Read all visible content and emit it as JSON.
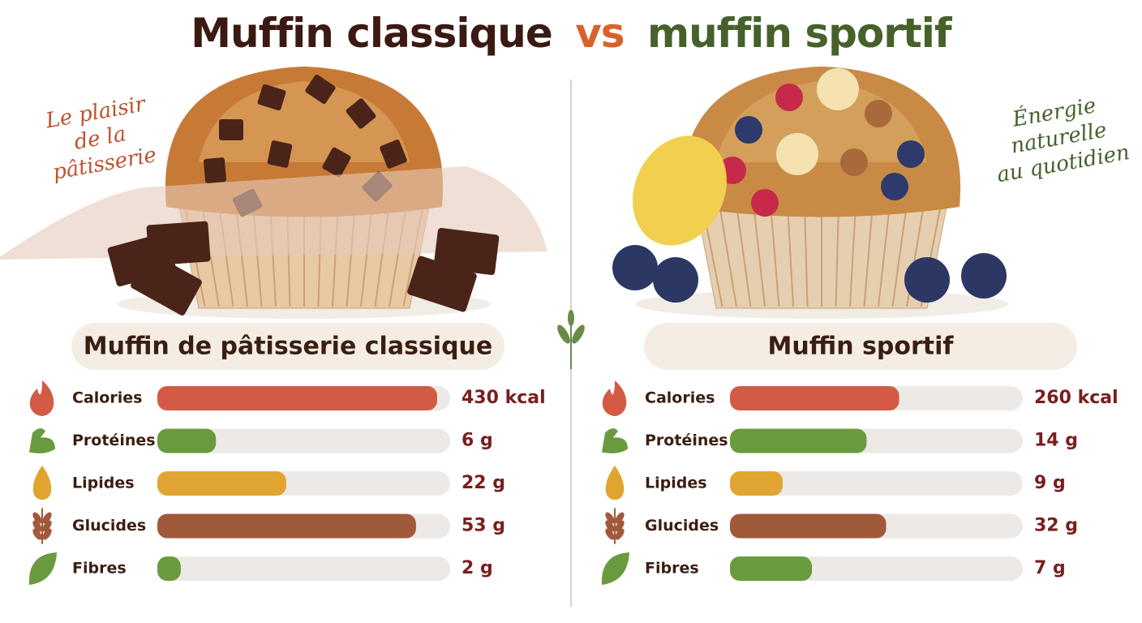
{
  "title": {
    "left": "Muffin classique",
    "vs": "vs",
    "right": "muffin sportif"
  },
  "nutrients": [
    {
      "name": "Calories",
      "color": "#d35a45",
      "xlim": [
        0,
        450
      ]
    },
    {
      "name": "Protéines",
      "color": "#6a9a3e",
      "xlim": [
        0,
        30
      ]
    },
    {
      "name": "Lipides",
      "color": "#e0a431",
      "xlim": [
        0,
        50
      ]
    },
    {
      "name": "Glucides",
      "color": "#a0593a",
      "xlim": [
        0,
        60
      ]
    },
    {
      "name": "Fibres",
      "color": "#6a9a3e",
      "xlim": [
        0,
        25
      ]
    }
  ],
  "panels": [
    {
      "name": "Muffin de pâtisserie classique",
      "tagline": [
        "Le plaisir",
        "de la",
        "pâtisserie"
      ],
      "values": [
        430,
        6,
        22,
        53,
        2
      ],
      "value_labels": [
        "430 kcal",
        "6 g",
        "22 g",
        "53 g",
        "2 g"
      ]
    },
    {
      "name": "Muffin sportif",
      "tagline": [
        "Énergie",
        "naturelle",
        "au quotidien"
      ],
      "values": [
        260,
        14,
        9,
        32,
        7
      ],
      "value_labels": [
        "260 kcal",
        "14 g",
        "9 g",
        "32 g",
        "7 g"
      ]
    }
  ]
}
